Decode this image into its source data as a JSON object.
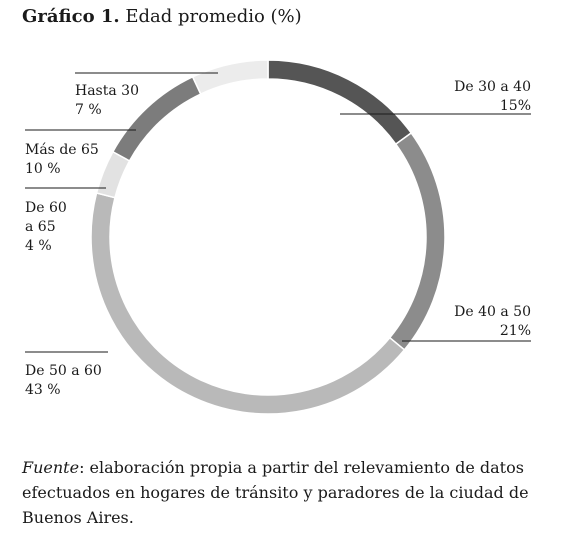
{
  "header": {
    "title_bold": "Gráfico 1.",
    "title_rest": "Edad promedio (%)"
  },
  "chart_data": {
    "type": "pie",
    "donut": true,
    "title": "Gráfico 1. Edad promedio (%)",
    "categories": [
      "De 30 a 40",
      "De 40 a 50",
      "De 50 a 60",
      "De 60 a 65",
      "Más de 65",
      "Hasta 30"
    ],
    "values": [
      15,
      21,
      43,
      4,
      10,
      7
    ],
    "value_labels": [
      "15%",
      "21%",
      "43 %",
      "4 %",
      "10 %",
      "7 %"
    ],
    "colors": [
      "#555555",
      "#8c8c8c",
      "#b9b9b9",
      "#e2e2e2",
      "#7c7c7c",
      "#ececec"
    ]
  },
  "footer": {
    "source_label": "Fuente",
    "source_text": ": elaboración propia a partir del relevamiento de datos efectuados en hogares de tránsito y paradores de la ciudad de Buenos Aires."
  }
}
